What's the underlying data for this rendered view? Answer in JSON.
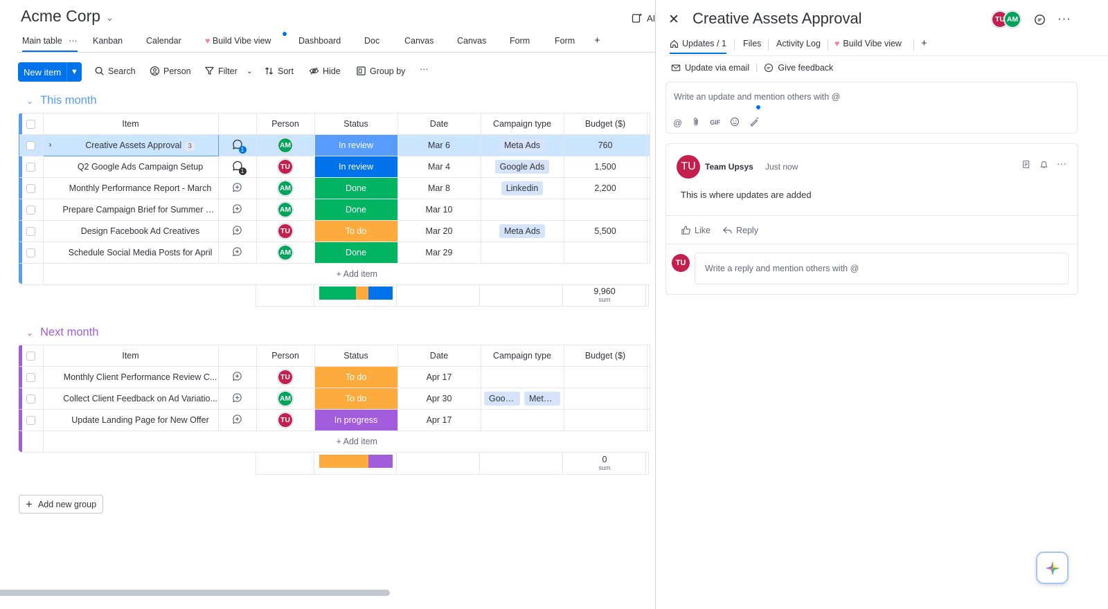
{
  "board": {
    "title": "Acme Corp",
    "ai_label": "AI s",
    "tabs": [
      {
        "label": "Main table"
      },
      {
        "label": "Kanban"
      },
      {
        "label": "Calendar"
      },
      {
        "label": "Build Vibe view"
      },
      {
        "label": "Dashboard"
      },
      {
        "label": "Doc"
      },
      {
        "label": "Canvas"
      },
      {
        "label": "Canvas"
      },
      {
        "label": "Form"
      },
      {
        "label": "Form"
      },
      {
        "label": "+"
      }
    ],
    "toolbar": {
      "new_item": "New item",
      "search": "Search",
      "person": "Person",
      "filter": "Filter",
      "sort": "Sort",
      "hide": "Hide",
      "group_by": "Group by",
      "more": "···"
    },
    "columns": [
      "Item",
      "Person",
      "Status",
      "Date",
      "Campaign type",
      "Budget ($)"
    ],
    "groups": [
      {
        "name": "This month",
        "color": "#579bfc",
        "rows": [
          {
            "item": "Creative Assets Approval",
            "count": "3",
            "updates": "1",
            "person": "AM",
            "status": "In review",
            "date": "Mar 6",
            "campaign": [
              "Meta Ads"
            ],
            "budget": "760"
          },
          {
            "item": "Q2 Google Ads Campaign Setup",
            "updates": "1",
            "person": "TU",
            "status": "In review",
            "date": "Mar 4",
            "campaign": [
              "Google Ads"
            ],
            "budget": "1,500"
          },
          {
            "item": "Monthly Performance Report - March",
            "person": "AM",
            "status": "Done",
            "date": "Mar 8",
            "campaign": [
              "Linkedin"
            ],
            "budget": "2,200"
          },
          {
            "item": "Prepare Campaign Brief for Summer S...",
            "person": "AM",
            "status": "Done",
            "date": "Mar 10",
            "campaign": [],
            "budget": ""
          },
          {
            "item": "Design Facebook Ad Creatives",
            "person": "TU",
            "status": "To do",
            "date": "Mar 20",
            "campaign": [
              "Meta Ads"
            ],
            "budget": "5,500"
          },
          {
            "item": "Schedule Social Media Posts for April",
            "person": "AM",
            "status": "Done",
            "date": "Mar 29",
            "campaign": [],
            "budget": ""
          }
        ],
        "add_item": "+ Add item",
        "sum": "9,960",
        "sum_label": "sum",
        "status_summary": [
          {
            "color": "#00b461",
            "fraction": 0.5
          },
          {
            "color": "#fdab3d",
            "fraction": 0.167
          },
          {
            "color": "#0073ea",
            "fraction": 0.333
          }
        ]
      },
      {
        "name": "Next month",
        "color": "#a25ddc",
        "rows": [
          {
            "item": "Monthly Client Performance Review C...",
            "person": "TU",
            "status": "To do",
            "date": "Apr 17",
            "campaign": [],
            "budget": ""
          },
          {
            "item": "Collect Client Feedback on Ad Variatio...",
            "person": "AM",
            "status": "To do",
            "date": "Apr 30",
            "campaign": [
              "Goog...",
              "Meta ..."
            ],
            "budget": ""
          },
          {
            "item": "Update Landing Page for New Offer",
            "person": "TU",
            "status": "In progress",
            "date": "Apr 17",
            "campaign": [],
            "budget": ""
          }
        ],
        "add_item": "+ Add item",
        "sum": "0",
        "sum_label": "sum",
        "status_summary": [
          {
            "color": "#fdab3d",
            "fraction": 0.667
          },
          {
            "color": "#a25ddc",
            "fraction": 0.333
          }
        ]
      }
    ],
    "add_group": "Add new group"
  },
  "colors": {
    "status": {
      "In review": "#0073ea",
      "Done": "#00b461",
      "To do": "#fdab3d",
      "In progress": "#a25ddc"
    },
    "person": {
      "AM": "#00a359",
      "TU": "#c4204d"
    },
    "accent": "#0073ea"
  },
  "panel": {
    "title": "Creative Assets Approval",
    "avatars": [
      "TU",
      "AM"
    ],
    "tabs": [
      "Updates / 1",
      "Files",
      "Activity Log",
      "Build Vibe view",
      "+"
    ],
    "update_via_email": "Update via email",
    "give_feedback": "Give feedback",
    "editor_placeholder": "Write an update and mention others with @",
    "editor_tools": {
      "gif": "GIF"
    },
    "update": {
      "avatar": "TU",
      "author": "Team Upsys",
      "time": "Just now",
      "body": "This is where updates are added",
      "like": "Like",
      "reply": "Reply"
    },
    "reply_avatar": "TU",
    "reply_placeholder": "Write a reply and mention others with @"
  }
}
